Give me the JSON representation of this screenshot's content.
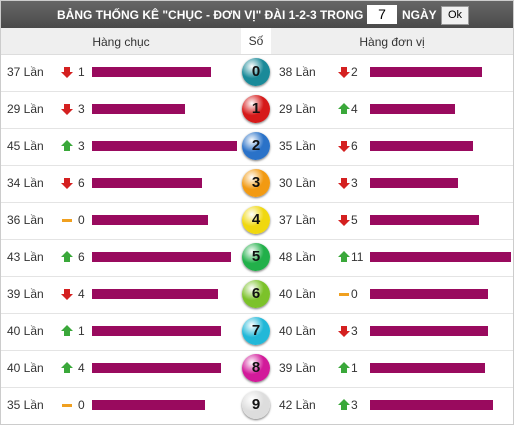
{
  "header": {
    "title": "BẢNG THỐNG KÊ \"CHỤC - ĐƠN VỊ\" ĐÀI 1-2-3 TRONG",
    "days": "7",
    "days_unit": "NGÀY",
    "button": "Ok"
  },
  "columns": {
    "tens": "Hàng chục",
    "digit": "Số",
    "units": "Hàng đơn vị"
  },
  "rows": [
    {
      "digit": "0",
      "ball_color": "#1a8a99",
      "tens": {
        "count": 37,
        "count_label": "37 Lần",
        "trend": "down",
        "delta": 1
      },
      "units": {
        "count": 38,
        "count_label": "38 Lần",
        "trend": "down",
        "delta": 2
      }
    },
    {
      "digit": "1",
      "ball_color": "#d61a1a",
      "tens": {
        "count": 29,
        "count_label": "29 Lần",
        "trend": "down",
        "delta": 3
      },
      "units": {
        "count": 29,
        "count_label": "29 Lần",
        "trend": "up",
        "delta": 4
      }
    },
    {
      "digit": "2",
      "ball_color": "#2a72c8",
      "tens": {
        "count": 45,
        "count_label": "45 Lần",
        "trend": "up",
        "delta": 3
      },
      "units": {
        "count": 35,
        "count_label": "35 Lần",
        "trend": "down",
        "delta": 6
      }
    },
    {
      "digit": "3",
      "ball_color": "#f29a12",
      "tens": {
        "count": 34,
        "count_label": "34 Lần",
        "trend": "down",
        "delta": 6
      },
      "units": {
        "count": 30,
        "count_label": "30 Lần",
        "trend": "down",
        "delta": 3
      }
    },
    {
      "digit": "4",
      "ball_color": "#f0d810",
      "tens": {
        "count": 36,
        "count_label": "36 Lần",
        "trend": "flat",
        "delta": 0
      },
      "units": {
        "count": 37,
        "count_label": "37 Lần",
        "trend": "down",
        "delta": 5
      }
    },
    {
      "digit": "5",
      "ball_color": "#22b04a",
      "tens": {
        "count": 43,
        "count_label": "43 Lần",
        "trend": "up",
        "delta": 6
      },
      "units": {
        "count": 48,
        "count_label": "48 Lần",
        "trend": "up",
        "delta": 11
      }
    },
    {
      "digit": "6",
      "ball_color": "#7cc22a",
      "tens": {
        "count": 39,
        "count_label": "39 Lần",
        "trend": "down",
        "delta": 4
      },
      "units": {
        "count": 40,
        "count_label": "40 Lần",
        "trend": "flat",
        "delta": 0
      }
    },
    {
      "digit": "7",
      "ball_color": "#22b8d8",
      "tens": {
        "count": 40,
        "count_label": "40 Lần",
        "trend": "up",
        "delta": 1
      },
      "units": {
        "count": 40,
        "count_label": "40 Lần",
        "trend": "down",
        "delta": 3
      }
    },
    {
      "digit": "8",
      "ball_color": "#d21a9a",
      "tens": {
        "count": 40,
        "count_label": "40 Lần",
        "trend": "up",
        "delta": 4
      },
      "units": {
        "count": 39,
        "count_label": "39 Lần",
        "trend": "up",
        "delta": 1
      }
    },
    {
      "digit": "9",
      "ball_color": "#dddddd",
      "tens": {
        "count": 35,
        "count_label": "35 Lần",
        "trend": "flat",
        "delta": 0
      },
      "units": {
        "count": 42,
        "count_label": "42 Lần",
        "trend": "up",
        "delta": 3
      }
    }
  ]
}
